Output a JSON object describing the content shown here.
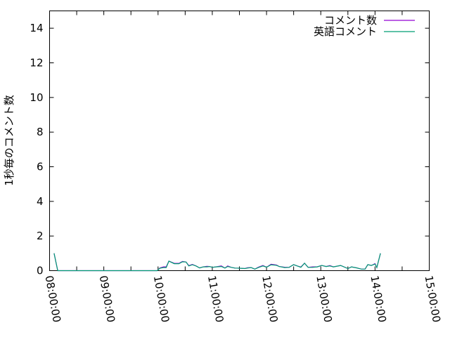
{
  "chart_data": {
    "type": "line",
    "title": "",
    "xlabel": "",
    "ylabel": "1秒毎のコメント数",
    "xlim": [
      "08:00:00",
      "15:00:00"
    ],
    "ylim": [
      0,
      15
    ],
    "x_ticks": [
      "08:00:00",
      "09:00:00",
      "10:00:00",
      "11:00:00",
      "12:00:00",
      "13:00:00",
      "14:00:00",
      "15:00:00"
    ],
    "y_ticks": [
      "0",
      "2",
      "4",
      "6",
      "8",
      "10",
      "12",
      "14"
    ],
    "grid": false,
    "legend_position": "top-right",
    "x": [
      "08:05",
      "08:09",
      "09:53",
      "09:59",
      "10:02",
      "10:06",
      "10:09",
      "10:12",
      "10:18",
      "10:23",
      "10:27",
      "10:31",
      "10:34",
      "10:38",
      "10:42",
      "10:46",
      "10:50",
      "10:54",
      "10:57",
      "11:00",
      "11:04",
      "11:10",
      "11:14",
      "11:17",
      "11:21",
      "11:25",
      "11:30",
      "11:36",
      "11:39",
      "11:43",
      "11:47",
      "11:51",
      "11:56",
      "12:00",
      "12:05",
      "12:11",
      "12:14",
      "12:20",
      "12:25",
      "12:30",
      "12:34",
      "12:38",
      "12:42",
      "12:46",
      "12:51",
      "12:56",
      "13:01",
      "13:06",
      "13:10",
      "13:14",
      "13:22",
      "13:30",
      "13:34",
      "13:40",
      "13:45",
      "13:49",
      "13:52",
      "13:56",
      "14:00",
      "14:02",
      "14:06"
    ],
    "series": [
      {
        "name": "コメント数",
        "color": "#9400d3",
        "values": [
          1,
          0,
          0,
          0,
          0.16,
          0.22,
          0.22,
          0.55,
          0.42,
          0.42,
          0.53,
          0.5,
          0.29,
          0.36,
          0.27,
          0.16,
          0.22,
          0.25,
          0.24,
          0.19,
          0.22,
          0.27,
          0.15,
          0.27,
          0.19,
          0.15,
          0.14,
          0.12,
          0.17,
          0.18,
          0.09,
          0.2,
          0.3,
          0.2,
          0.37,
          0.33,
          0.24,
          0.2,
          0.19,
          0.35,
          0.27,
          0.21,
          0.43,
          0.19,
          0.22,
          0.22,
          0.3,
          0.24,
          0.29,
          0.22,
          0.3,
          0.12,
          0.22,
          0.16,
          0.09,
          0.09,
          0.35,
          0.3,
          0.41,
          0.18,
          1
        ]
      },
      {
        "name": "英語コメント",
        "color": "#009e73",
        "values": [
          1,
          0,
          0,
          0,
          0.14,
          0.18,
          0.18,
          0.55,
          0.4,
          0.4,
          0.51,
          0.5,
          0.27,
          0.34,
          0.27,
          0.16,
          0.22,
          0.22,
          0.24,
          0.19,
          0.22,
          0.24,
          0.15,
          0.24,
          0.19,
          0.15,
          0.14,
          0.12,
          0.15,
          0.18,
          0.09,
          0.18,
          0.27,
          0.2,
          0.34,
          0.31,
          0.24,
          0.18,
          0.19,
          0.35,
          0.27,
          0.19,
          0.43,
          0.19,
          0.19,
          0.22,
          0.3,
          0.24,
          0.27,
          0.22,
          0.3,
          0.12,
          0.22,
          0.16,
          0.09,
          0.09,
          0.35,
          0.3,
          0.38,
          0.18,
          1
        ]
      }
    ]
  }
}
